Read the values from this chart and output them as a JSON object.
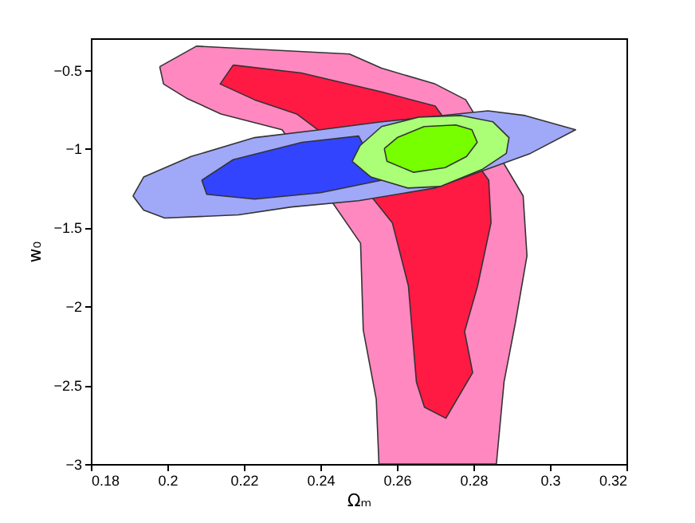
{
  "chart_data": {
    "type": "area",
    "xlabel": "Ωₘ",
    "ylabel": "w₀",
    "xlim": [
      0.18,
      0.32
    ],
    "ylim": [
      -3,
      -0.3
    ],
    "xticks": [
      0.18,
      0.2,
      0.22,
      0.24,
      0.26,
      0.28,
      0.3,
      0.32
    ],
    "yticks": [
      -3,
      -2.5,
      -2,
      -1.5,
      -1,
      -0.5
    ],
    "grid": false,
    "series": [
      {
        "color": "#ff88c0",
        "x": [
          0.198,
          0.2076,
          0.2476,
          0.256,
          0.27,
          0.278,
          0.293,
          0.294,
          0.291,
          0.288,
          0.286,
          0.2553,
          0.2546,
          0.2512,
          0.2505,
          0.23,
          0.214,
          0.205,
          0.199
        ],
        "values": [
          -0.48,
          -0.35,
          -0.4,
          -0.49,
          -0.59,
          -0.69,
          -1.3,
          -1.68,
          -2.1,
          -2.48,
          -3,
          -3,
          -2.59,
          -2.15,
          -1.6,
          -0.88,
          -0.78,
          -0.68,
          -0.59
        ]
      },
      {
        "color": "#ff1a44",
        "x": [
          0.2172,
          0.235,
          0.256,
          0.27,
          0.284,
          0.2846,
          0.2811,
          0.2777,
          0.2798,
          0.2728,
          0.2672,
          0.2651,
          0.263,
          0.2588,
          0.2393,
          0.2338,
          0.2228,
          0.2138
        ],
        "values": [
          -0.47,
          -0.52,
          -0.64,
          -0.73,
          -1.2,
          -1.47,
          -1.87,
          -2.16,
          -2.42,
          -2.71,
          -2.64,
          -2.48,
          -1.87,
          -1.47,
          -0.88,
          -0.78,
          -0.69,
          -0.59
        ]
      },
      {
        "color": "#a0a8f8",
        "x": [
          0.191,
          0.1938,
          0.2062,
          0.2228,
          0.24,
          0.256,
          0.2838,
          0.2935,
          0.3067,
          0.2949,
          0.2699,
          0.25,
          0.2324,
          0.2186,
          0.1993,
          0.1938
        ],
        "values": [
          -1.3,
          -1.18,
          -1.05,
          -0.93,
          -0.88,
          -0.83,
          -0.76,
          -0.79,
          -0.88,
          -1.03,
          -1.25,
          -1.33,
          -1.37,
          -1.42,
          -1.44,
          -1.39
        ]
      },
      {
        "color": "#3344ff",
        "x": [
          0.209,
          0.2172,
          0.2352,
          0.25,
          0.256,
          0.24,
          0.2228,
          0.2103
        ],
        "values": [
          -1.2,
          -1.07,
          -0.96,
          -0.92,
          -1.2,
          -1.28,
          -1.32,
          -1.29
        ]
      },
      {
        "color": "#aaff77",
        "x": [
          0.2483,
          0.2504,
          0.256,
          0.2657,
          0.2768,
          0.2851,
          0.2893,
          0.2886,
          0.2824,
          0.2713,
          0.2629,
          0.2532
        ],
        "values": [
          -1.08,
          -0.98,
          -0.86,
          -0.8,
          -0.79,
          -0.83,
          -0.93,
          -1.03,
          -1.13,
          -1.24,
          -1.25,
          -1.18
        ]
      },
      {
        "color": "#77ff00",
        "x": [
          0.2567,
          0.2601,
          0.2671,
          0.2754,
          0.2796,
          0.281,
          0.2782,
          0.2726,
          0.2643,
          0.2574
        ],
        "values": [
          -1.0,
          -0.93,
          -0.86,
          -0.85,
          -0.88,
          -0.96,
          -1.05,
          -1.12,
          -1.15,
          -1.08
        ]
      }
    ]
  }
}
